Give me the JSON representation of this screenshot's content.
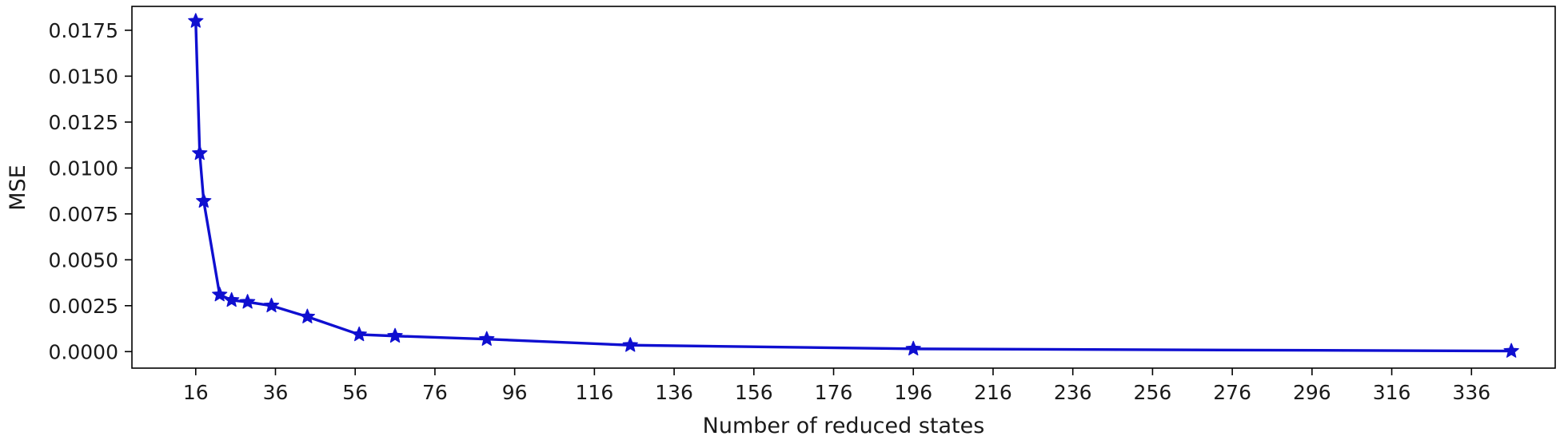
{
  "chart_data": {
    "type": "line",
    "title": "",
    "xlabel": "Number of reduced states",
    "ylabel": "MSE",
    "xlim": [
      0,
      357
    ],
    "ylim": [
      -0.0009,
      0.0188
    ],
    "xticks": [
      16,
      36,
      56,
      76,
      96,
      116,
      136,
      156,
      176,
      196,
      216,
      236,
      256,
      276,
      296,
      316,
      336
    ],
    "yticks": [
      0.0,
      0.0025,
      0.005,
      0.0075,
      0.01,
      0.0125,
      0.015,
      0.0175
    ],
    "ytick_labels": [
      "0.0000",
      "0.0025",
      "0.0050",
      "0.0075",
      "0.0100",
      "0.0125",
      "0.0150",
      "0.0175"
    ],
    "grid": false,
    "legend": "none",
    "series": [
      {
        "color": "#0f0fd0",
        "marker": "star",
        "x": [
          16,
          17,
          18,
          22,
          25,
          29,
          35,
          44,
          57,
          66,
          89,
          125,
          196,
          346
        ],
        "y": [
          0.018,
          0.0108,
          0.0082,
          0.0031,
          0.0028,
          0.0027,
          0.0025,
          0.0019,
          0.00093,
          0.00085,
          0.00068,
          0.00035,
          0.00015,
          3e-05
        ]
      }
    ]
  }
}
